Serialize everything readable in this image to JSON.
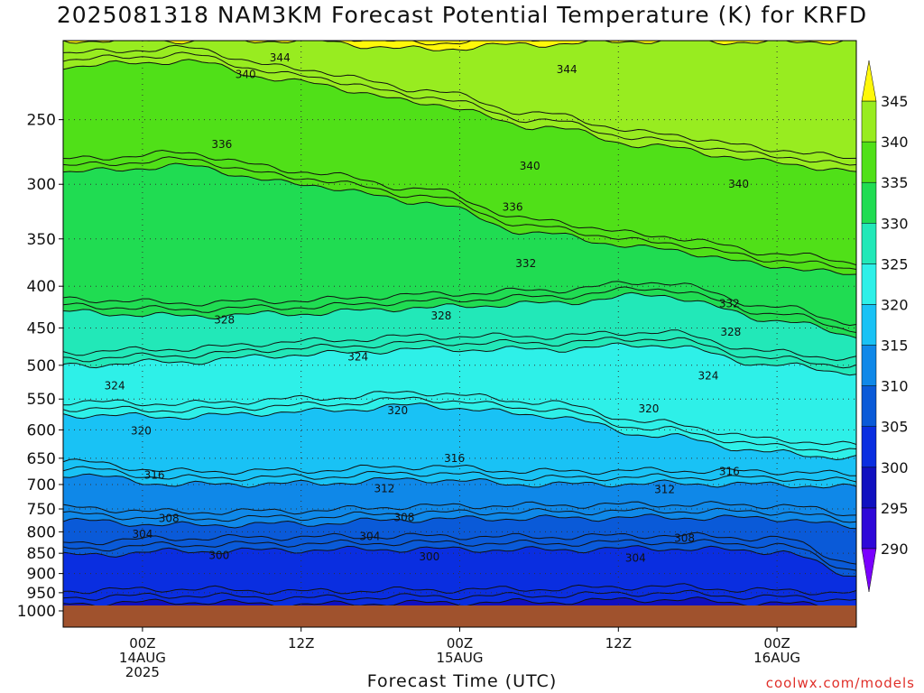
{
  "chart_data": {
    "type": "heatmap",
    "title": "2025081318 NAM3KM Forecast Potential Temperature (K) for KRFD",
    "xlabel": "Forecast Time (UTC)",
    "ylabel": "",
    "credit": "coolwx.com/models",
    "y_scale": "log-pressure",
    "y_ticks": [
      250,
      300,
      350,
      400,
      450,
      500,
      550,
      600,
      650,
      700,
      750,
      800,
      850,
      900,
      950,
      1000
    ],
    "y_range_hPa": [
      200,
      1000
    ],
    "x_tick_labels": [
      {
        "lines": [
          "00Z",
          "14AUG",
          "2025"
        ]
      },
      {
        "lines": [
          "12Z"
        ]
      },
      {
        "lines": [
          "00Z",
          "15AUG"
        ]
      },
      {
        "lines": [
          "12Z"
        ]
      },
      {
        "lines": [
          "00Z",
          "16AUG"
        ]
      }
    ],
    "x_hours": [
      6,
      18,
      30,
      42,
      54
    ],
    "x_range_hours": [
      0,
      60
    ],
    "colorbar": {
      "levels": [
        290,
        295,
        300,
        305,
        310,
        315,
        320,
        325,
        330,
        335,
        340,
        345
      ],
      "colors": [
        "#7a00ff",
        "#2e08d8",
        "#1010c0",
        "#0a2ee0",
        "#0a5ad8",
        "#0f88e8",
        "#19c2f5",
        "#2ef0e8",
        "#22e8b8",
        "#20dc52",
        "#50e018",
        "#98ec20",
        "#cff030",
        "#fff80a"
      ],
      "tick_labels": [
        "290",
        "295",
        "300",
        "305",
        "310",
        "315",
        "320",
        "325",
        "330",
        "335",
        "340",
        "345"
      ]
    },
    "layers": [
      {
        "theta": 300,
        "pressure": [
          980,
          975,
          982,
          978,
          975,
          968,
          980,
          985
        ]
      },
      {
        "theta": 305,
        "pressure": [
          855,
          845,
          842,
          840,
          842,
          838,
          845,
          905
        ]
      },
      {
        "theta": 310,
        "pressure": [
          775,
          785,
          782,
          772,
          770,
          768,
          770,
          790
        ]
      },
      {
        "theta": 315,
        "pressure": [
          680,
          700,
          698,
          690,
          700,
          698,
          700,
          706
        ]
      },
      {
        "theta": 320,
        "pressure": [
          575,
          578,
          570,
          560,
          575,
          610,
          640,
          650
        ]
      },
      {
        "theta": 325,
        "pressure": [
          500,
          495,
          485,
          478,
          478,
          472,
          500,
          510
        ]
      },
      {
        "theta": 330,
        "pressure": [
          430,
          435,
          432,
          425,
          420,
          410,
          440,
          460
        ]
      },
      {
        "theta": 335,
        "pressure": [
          290,
          285,
          300,
          315,
          345,
          360,
          378,
          388
        ]
      },
      {
        "theta": 340,
        "pressure": [
          215,
          212,
          225,
          238,
          255,
          270,
          282,
          290
        ]
      },
      {
        "theta": 345,
        "pressure": [
          200,
          200,
          200,
          205,
          202,
          200,
          201,
          200
        ]
      }
    ],
    "layer_hours": [
      0,
      9,
      18,
      27,
      36,
      45,
      54,
      60
    ],
    "contour_labels": [
      {
        "text": "344",
        "hour": 16.4,
        "hPa": 210
      },
      {
        "text": "344",
        "hour": 38.1,
        "hPa": 217
      },
      {
        "text": "340",
        "hour": 13.8,
        "hPa": 220
      },
      {
        "text": "336",
        "hour": 12.0,
        "hPa": 268
      },
      {
        "text": "340",
        "hour": 35.3,
        "hPa": 285
      },
      {
        "text": "340",
        "hour": 51.1,
        "hPa": 300
      },
      {
        "text": "336",
        "hour": 34.0,
        "hPa": 320
      },
      {
        "text": "332",
        "hour": 35.0,
        "hPa": 375
      },
      {
        "text": "332",
        "hour": 50.4,
        "hPa": 420
      },
      {
        "text": "328",
        "hour": 12.2,
        "hPa": 440
      },
      {
        "text": "328",
        "hour": 28.6,
        "hPa": 435
      },
      {
        "text": "328",
        "hour": 50.5,
        "hPa": 455
      },
      {
        "text": "324",
        "hour": 22.3,
        "hPa": 488
      },
      {
        "text": "324",
        "hour": 3.9,
        "hPa": 530
      },
      {
        "text": "324",
        "hour": 48.8,
        "hPa": 515
      },
      {
        "text": "320",
        "hour": 25.3,
        "hPa": 568
      },
      {
        "text": "320",
        "hour": 5.9,
        "hPa": 602
      },
      {
        "text": "320",
        "hour": 44.3,
        "hPa": 565
      },
      {
        "text": "316",
        "hour": 29.6,
        "hPa": 650
      },
      {
        "text": "316",
        "hour": 6.9,
        "hPa": 682
      },
      {
        "text": "316",
        "hour": 50.4,
        "hPa": 675
      },
      {
        "text": "312",
        "hour": 24.3,
        "hPa": 708
      },
      {
        "text": "312",
        "hour": 45.5,
        "hPa": 710
      },
      {
        "text": "308",
        "hour": 8.0,
        "hPa": 770
      },
      {
        "text": "308",
        "hour": 25.8,
        "hPa": 768
      },
      {
        "text": "308",
        "hour": 47.0,
        "hPa": 815
      },
      {
        "text": "304",
        "hour": 6.0,
        "hPa": 805
      },
      {
        "text": "304",
        "hour": 23.2,
        "hPa": 810
      },
      {
        "text": "304",
        "hour": 43.3,
        "hPa": 862
      },
      {
        "text": "300",
        "hour": 11.8,
        "hPa": 855
      },
      {
        "text": "300",
        "hour": 27.7,
        "hPa": 858
      }
    ]
  }
}
